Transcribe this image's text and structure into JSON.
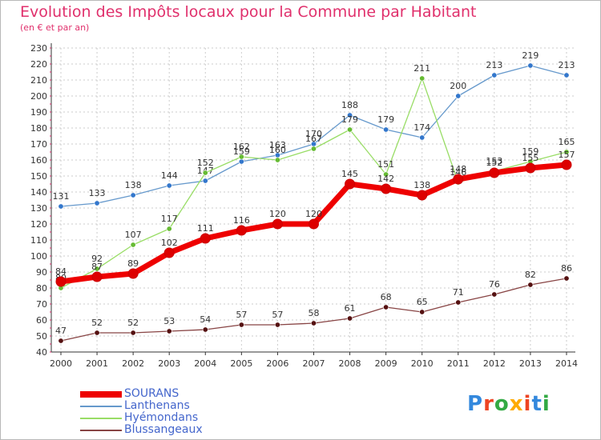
{
  "header": {
    "title": "Evolution des Impôts locaux pour la Commune par Habitant",
    "subtitle": "(en € et par an)"
  },
  "logo": {
    "text": "Proxiti"
  },
  "colors": {
    "title": "#e0306c",
    "grid": "#cccccc",
    "axis": "#333333",
    "legend_text": "#4466cc"
  },
  "chart_data": {
    "type": "line",
    "x": [
      2000,
      2001,
      2002,
      2003,
      2004,
      2005,
      2006,
      2007,
      2008,
      2009,
      2010,
      2011,
      2012,
      2013,
      2014
    ],
    "ylim": [
      40,
      230
    ],
    "ytick_step": 10,
    "grid": true,
    "legend_position": "bottom-left",
    "series": [
      {
        "name": "Lanthenans",
        "color": "#6699cc",
        "marker": "#3377cc",
        "labelled": true,
        "values": [
          131,
          133,
          138,
          144,
          147,
          159,
          163,
          170,
          188,
          179,
          174,
          200,
          213,
          219,
          213
        ]
      },
      {
        "name": "Hyémondans",
        "color": "#99dd66",
        "marker": "#66bb33",
        "labelled": true,
        "values": [
          80,
          92,
          107,
          117,
          152,
          162,
          160,
          167,
          179,
          151,
          211,
          146,
          153,
          159,
          165
        ]
      },
      {
        "name": "Blussangeaux",
        "color": "#884444",
        "marker": "#551111",
        "labelled": true,
        "values": [
          47,
          52,
          52,
          53,
          54,
          57,
          57,
          58,
          61,
          68,
          65,
          71,
          76,
          82,
          86
        ]
      },
      {
        "name": "SOURANS",
        "color": "#ee0000",
        "marker": "#dd0000",
        "labelled": true,
        "values": [
          84,
          87,
          89,
          102,
          111,
          116,
          120,
          120,
          145,
          142,
          138,
          148,
          152,
          155,
          157
        ]
      }
    ],
    "legend": [
      "SOURANS",
      "Lanthenans",
      "Hyémondans",
      "Blussangeaux"
    ]
  }
}
